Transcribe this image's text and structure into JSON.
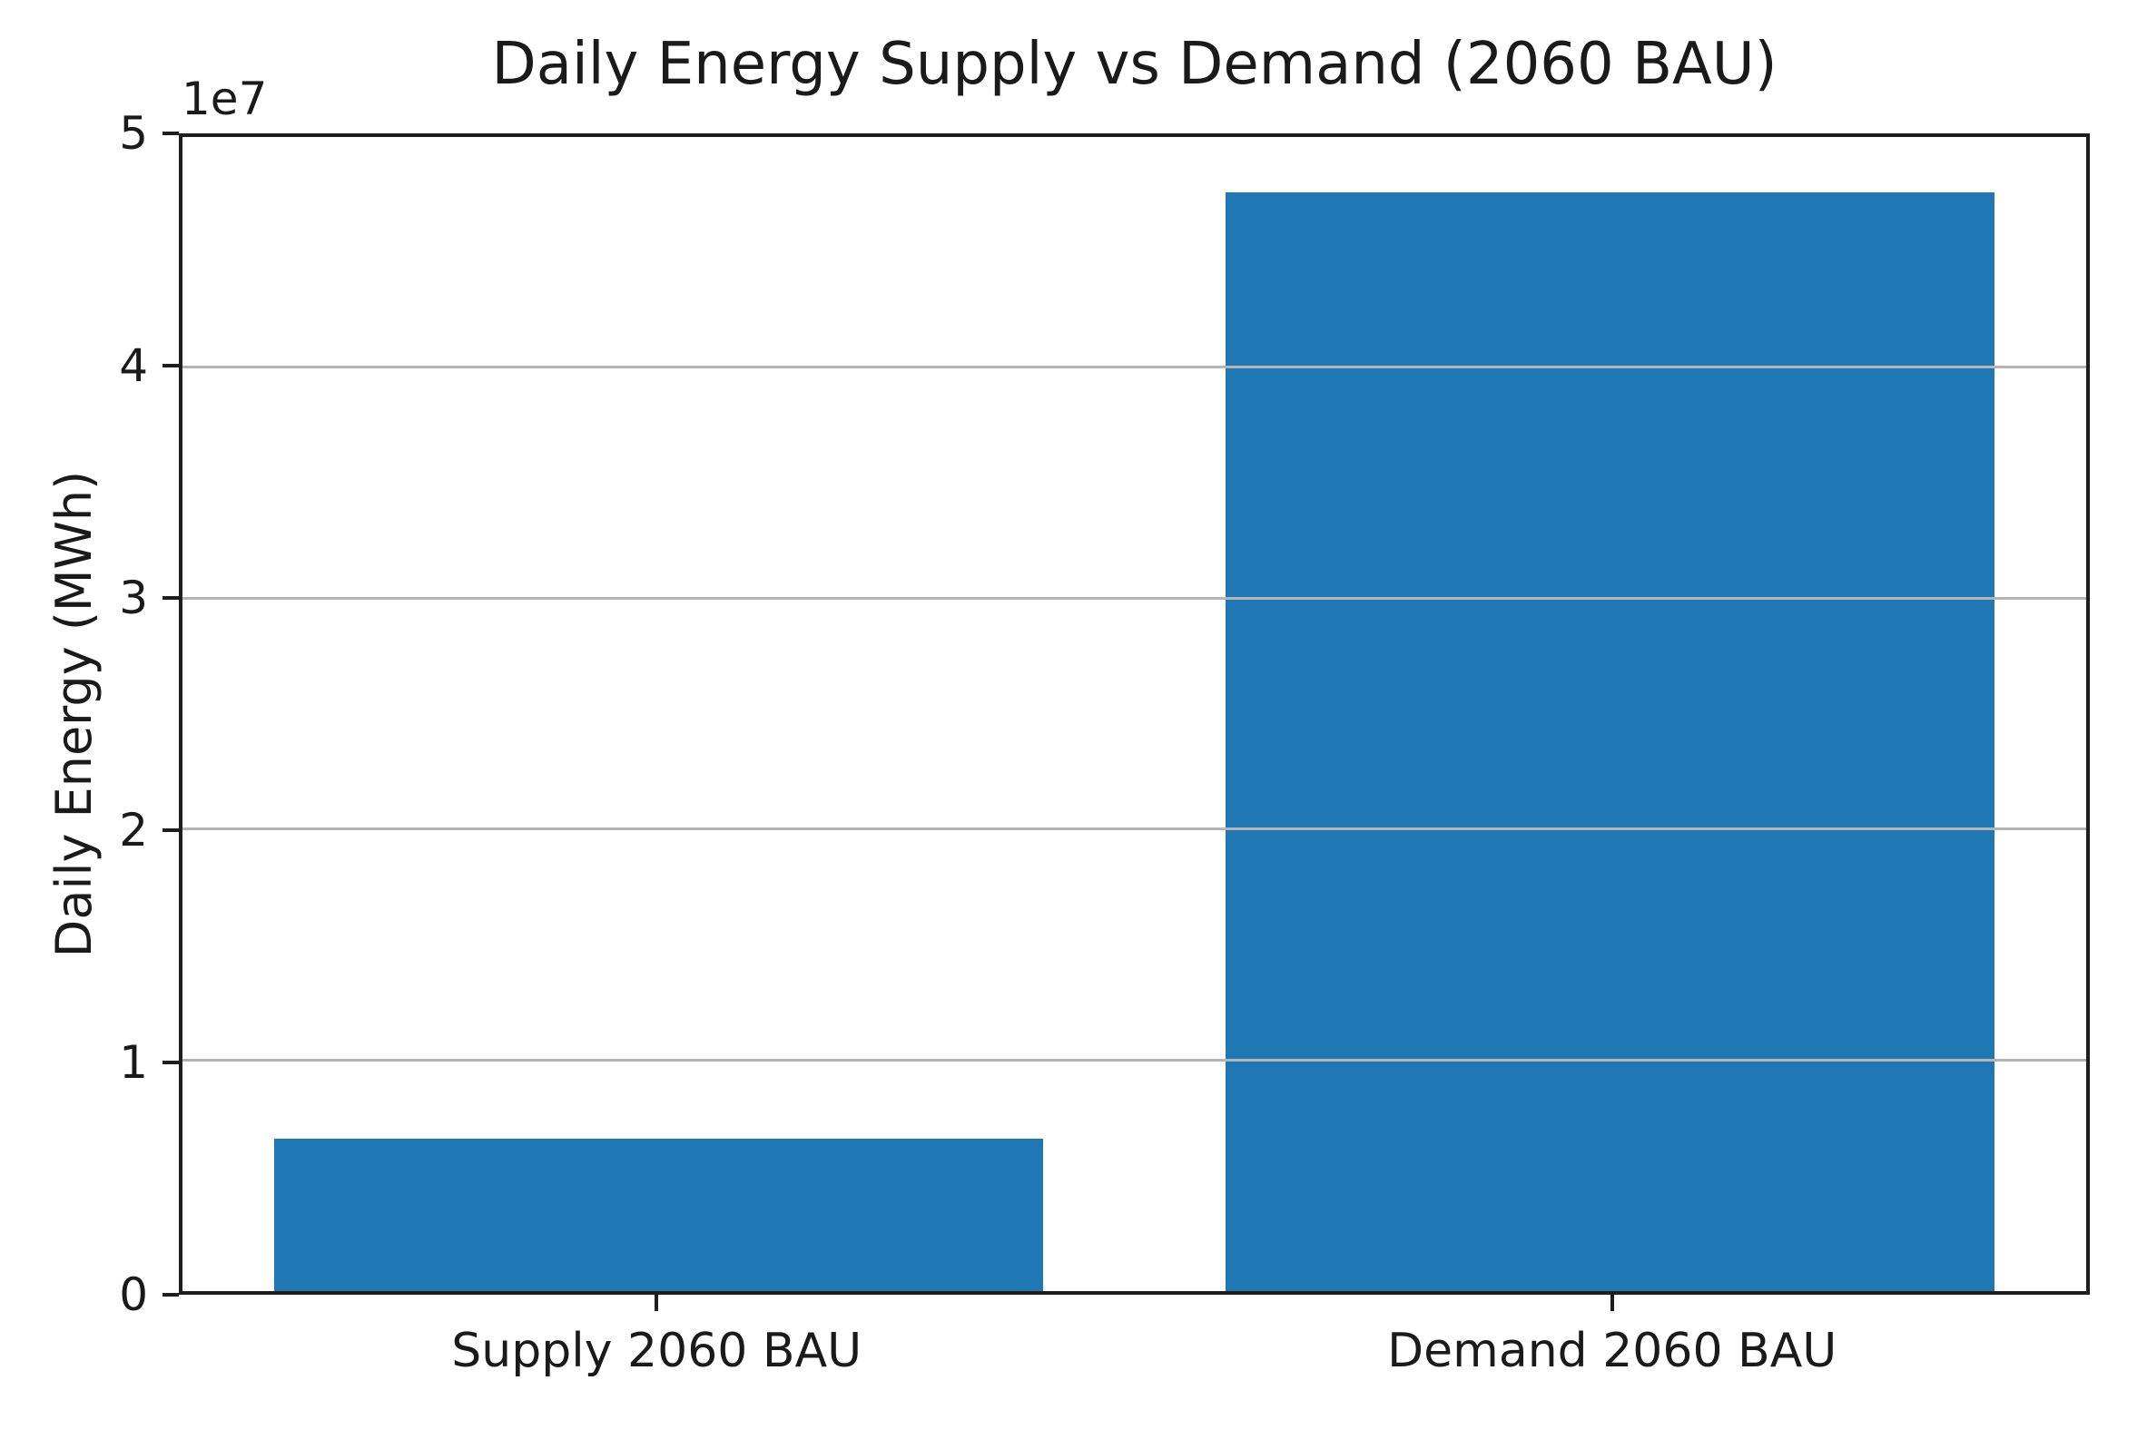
{
  "chart_data": {
    "type": "bar",
    "title": "Daily Energy Supply vs Demand (2060 BAU)",
    "xlabel": "",
    "ylabel": "Daily Energy (MWh)",
    "categories": [
      "Supply 2060 BAU",
      "Demand 2060 BAU"
    ],
    "values": [
      6600000,
      47600000
    ],
    "ylim": [
      0,
      50000000
    ],
    "ytick_values": [
      0,
      10000000,
      20000000,
      30000000,
      40000000,
      50000000
    ],
    "ytick_labels": [
      "0",
      "1",
      "2",
      "3",
      "4",
      "5"
    ],
    "offset_text": "1e7",
    "grid": "horizontal",
    "grid_above_bars": true,
    "legend_position": "none",
    "bar_color": "#1f77b4",
    "grid_color": "#b4b4b4",
    "spine_color": "#1e1e1e",
    "text_color": "#1a1a1a"
  }
}
